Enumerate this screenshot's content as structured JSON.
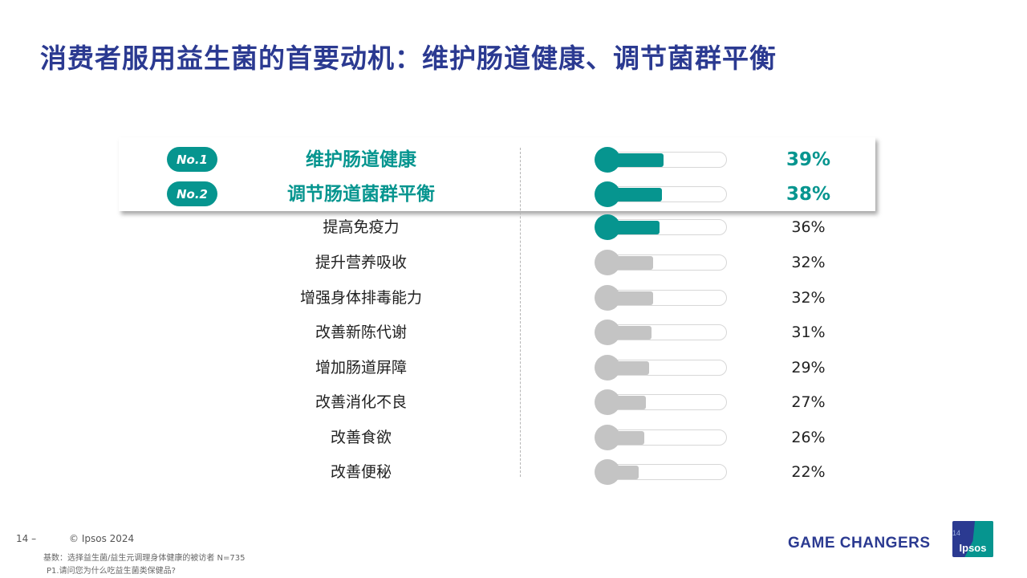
{
  "title": "消费者服用益生菌的首要动机：维护肠道健康、调节菌群平衡",
  "colors": {
    "accent": "#06958f",
    "inactive": "#c4c4c4",
    "title": "#2b3a91"
  },
  "chart_data": {
    "type": "bar",
    "categories": [
      "维护肠道健康",
      "调节肠道菌群平衡",
      "提高免疫力",
      "提升营养吸收",
      "增强身体排毒能力",
      "改善新陈代谢",
      "增加肠道屏障",
      "改善消化不良",
      "改善食欲",
      "改善便秘"
    ],
    "values": [
      39,
      38,
      36,
      32,
      32,
      31,
      29,
      27,
      26,
      22
    ],
    "labels": [
      "39%",
      "38%",
      "36%",
      "32%",
      "32%",
      "31%",
      "29%",
      "27%",
      "26%",
      "22%"
    ],
    "ranks": [
      "No.1",
      "No.2"
    ],
    "xlim": [
      0,
      100
    ]
  },
  "footer": {
    "page": "14 –",
    "copyright": "© Ipsos 2024",
    "base": "基数：选择益生菌/益生元调理身体健康的被访者 N=735",
    "question": "P1.请问您为什么吃益生菌类保健品?",
    "brand": "GAME CHANGERS",
    "logo_text": "Ipsos",
    "logo_page": "14"
  }
}
